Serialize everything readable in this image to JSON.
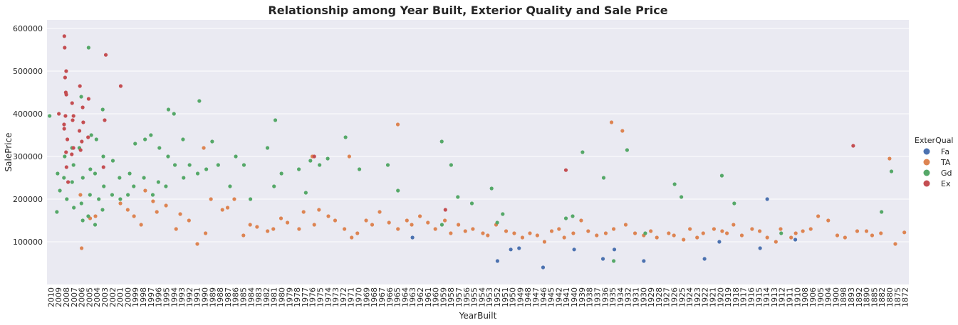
{
  "chart_data": {
    "type": "scatter",
    "title": "Relationship among Year Built, Exterior Quality and Sale Price",
    "xlabel": "YearBuilt",
    "ylabel": "SalePrice",
    "ylim": [
      0,
      620000
    ],
    "yticks": [
      100000,
      200000,
      300000,
      400000,
      500000,
      600000
    ],
    "grid": true,
    "categories": [
      "2010",
      "2009",
      "2008",
      "2007",
      "2006",
      "2005",
      "2004",
      "2003",
      "2002",
      "2001",
      "2000",
      "1999",
      "1998",
      "1997",
      "1996",
      "1995",
      "1994",
      "1993",
      "1992",
      "1991",
      "1990",
      "1989",
      "1988",
      "1987",
      "1986",
      "1985",
      "1984",
      "1983",
      "1982",
      "1981",
      "1980",
      "1979",
      "1978",
      "1977",
      "1976",
      "1975",
      "1974",
      "1973",
      "1972",
      "1971",
      "1970",
      "1969",
      "1968",
      "1967",
      "1966",
      "1965",
      "1964",
      "1963",
      "1962",
      "1961",
      "1960",
      "1959",
      "1958",
      "1957",
      "1956",
      "1955",
      "1954",
      "1953",
      "1952",
      "1951",
      "1950",
      "1949",
      "1948",
      "1947",
      "1946",
      "1945",
      "1942",
      "1941",
      "1940",
      "1939",
      "1938",
      "1937",
      "1936",
      "1935",
      "1934",
      "1932",
      "1931",
      "1930",
      "1929",
      "1928",
      "1927",
      "1926",
      "1925",
      "1924",
      "1923",
      "1922",
      "1921",
      "1920",
      "1919",
      "1918",
      "1917",
      "1916",
      "1915",
      "1914",
      "1913",
      "1912",
      "1911",
      "1910",
      "1908",
      "1906",
      "1905",
      "1904",
      "1900",
      "1898",
      "1893",
      "1892",
      "1890",
      "1885",
      "1882",
      "1880",
      "1875",
      "1872"
    ],
    "legend": {
      "title": "ExterQual",
      "position": "right",
      "entries": [
        {
          "label": "Fa",
          "color": "#4c72b0"
        },
        {
          "label": "TA",
          "color": "#dd8452"
        },
        {
          "label": "Gd",
          "color": "#55a868"
        },
        {
          "label": "Ex",
          "color": "#c44e52"
        }
      ]
    },
    "series": [
      {
        "name": "Fa",
        "color": "#4c72b0",
        "points": [
          [
            "1963",
            110000
          ],
          [
            "1952",
            55000
          ],
          [
            "1950",
            82000
          ],
          [
            "1949",
            85000
          ],
          [
            "1946",
            40000
          ],
          [
            "1940",
            82000
          ],
          [
            "1936",
            60000
          ],
          [
            "1935",
            82000
          ],
          [
            "1930",
            55000
          ],
          [
            "1922",
            60000
          ],
          [
            "1920",
            100000
          ],
          [
            "1915",
            85000
          ],
          [
            "1914",
            200000
          ],
          [
            "1910",
            105000
          ]
        ]
      },
      {
        "name": "TA",
        "color": "#dd8452",
        "points": [
          [
            "2006",
            85000
          ],
          [
            "2006",
            210000
          ],
          [
            "2005",
            155000
          ],
          [
            "2004",
            160000
          ],
          [
            "2001",
            190000
          ],
          [
            "2000",
            175000
          ],
          [
            "1999",
            160000
          ],
          [
            "1998",
            140000
          ],
          [
            "1998",
            220000
          ],
          [
            "1997",
            195000
          ],
          [
            "1996",
            170000
          ],
          [
            "1995",
            185000
          ],
          [
            "1994",
            130000
          ],
          [
            "1993",
            165000
          ],
          [
            "1992",
            150000
          ],
          [
            "1991",
            95000
          ],
          [
            "1990",
            120000
          ],
          [
            "1990",
            320000
          ],
          [
            "1989",
            200000
          ],
          [
            "1988",
            175000
          ],
          [
            "1987",
            180000
          ],
          [
            "1986",
            200000
          ],
          [
            "1985",
            115000
          ],
          [
            "1984",
            140000
          ],
          [
            "1983",
            135000
          ],
          [
            "1982",
            125000
          ],
          [
            "1981",
            130000
          ],
          [
            "1980",
            155000
          ],
          [
            "1979",
            145000
          ],
          [
            "1978",
            130000
          ],
          [
            "1977",
            170000
          ],
          [
            "1976",
            140000
          ],
          [
            "1976",
            300000
          ],
          [
            "1975",
            175000
          ],
          [
            "1974",
            160000
          ],
          [
            "1973",
            150000
          ],
          [
            "1972",
            130000
          ],
          [
            "1971",
            110000
          ],
          [
            "1971",
            300000
          ],
          [
            "1970",
            120000
          ],
          [
            "1969",
            150000
          ],
          [
            "1968",
            140000
          ],
          [
            "1967",
            170000
          ],
          [
            "1966",
            145000
          ],
          [
            "1965",
            130000
          ],
          [
            "1965",
            375000
          ],
          [
            "1964",
            150000
          ],
          [
            "1963",
            140000
          ],
          [
            "1962",
            160000
          ],
          [
            "1961",
            145000
          ],
          [
            "1960",
            130000
          ],
          [
            "1959",
            150000
          ],
          [
            "1958",
            120000
          ],
          [
            "1957",
            140000
          ],
          [
            "1956",
            125000
          ],
          [
            "1955",
            130000
          ],
          [
            "1954",
            120000
          ],
          [
            "1953",
            115000
          ],
          [
            "1952",
            140000
          ],
          [
            "1951",
            125000
          ],
          [
            "1950",
            120000
          ],
          [
            "1949",
            110000
          ],
          [
            "1948",
            120000
          ],
          [
            "1947",
            115000
          ],
          [
            "1946",
            100000
          ],
          [
            "1945",
            125000
          ],
          [
            "1942",
            130000
          ],
          [
            "1941",
            110000
          ],
          [
            "1940",
            120000
          ],
          [
            "1939",
            150000
          ],
          [
            "1938",
            125000
          ],
          [
            "1937",
            115000
          ],
          [
            "1936",
            120000
          ],
          [
            "1935",
            130000
          ],
          [
            "1935",
            380000
          ],
          [
            "1934",
            360000
          ],
          [
            "1932",
            140000
          ],
          [
            "1931",
            120000
          ],
          [
            "1930",
            115000
          ],
          [
            "1929",
            125000
          ],
          [
            "1928",
            110000
          ],
          [
            "1927",
            120000
          ],
          [
            "1926",
            115000
          ],
          [
            "1925",
            105000
          ],
          [
            "1924",
            130000
          ],
          [
            "1923",
            110000
          ],
          [
            "1922",
            120000
          ],
          [
            "1921",
            130000
          ],
          [
            "1920",
            125000
          ],
          [
            "1919",
            120000
          ],
          [
            "1918",
            140000
          ],
          [
            "1917",
            115000
          ],
          [
            "1916",
            130000
          ],
          [
            "1915",
            125000
          ],
          [
            "1914",
            110000
          ],
          [
            "1913",
            100000
          ],
          [
            "1912",
            130000
          ],
          [
            "1911",
            110000
          ],
          [
            "1910",
            120000
          ],
          [
            "1908",
            125000
          ],
          [
            "1906",
            130000
          ],
          [
            "1905",
            160000
          ],
          [
            "1904",
            150000
          ],
          [
            "1900",
            115000
          ],
          [
            "1898",
            110000
          ],
          [
            "1892",
            125000
          ],
          [
            "1890",
            125000
          ],
          [
            "1885",
            115000
          ],
          [
            "1882",
            120000
          ],
          [
            "1880",
            295000
          ],
          [
            "1875",
            95000
          ],
          [
            "1872",
            122000
          ]
        ]
      },
      {
        "name": "Gd",
        "color": "#55a868",
        "points": [
          [
            "2010",
            395000
          ],
          [
            "2009",
            260000
          ],
          [
            "2009",
            220000
          ],
          [
            "2009",
            170000
          ],
          [
            "2008",
            300000
          ],
          [
            "2008",
            250000
          ],
          [
            "2008",
            200000
          ],
          [
            "2007",
            320000
          ],
          [
            "2007",
            280000
          ],
          [
            "2007",
            240000
          ],
          [
            "2007",
            180000
          ],
          [
            "2006",
            440000
          ],
          [
            "2006",
            320000
          ],
          [
            "2006",
            250000
          ],
          [
            "2006",
            190000
          ],
          [
            "2006",
            150000
          ],
          [
            "2005",
            555000
          ],
          [
            "2005",
            350000
          ],
          [
            "2005",
            270000
          ],
          [
            "2005",
            210000
          ],
          [
            "2005",
            160000
          ],
          [
            "2004",
            340000
          ],
          [
            "2004",
            260000
          ],
          [
            "2004",
            200000
          ],
          [
            "2004",
            140000
          ],
          [
            "2003",
            410000
          ],
          [
            "2003",
            300000
          ],
          [
            "2003",
            230000
          ],
          [
            "2003",
            175000
          ],
          [
            "2002",
            290000
          ],
          [
            "2002",
            210000
          ],
          [
            "2001",
            250000
          ],
          [
            "2001",
            200000
          ],
          [
            "2000",
            260000
          ],
          [
            "2000",
            210000
          ],
          [
            "1999",
            330000
          ],
          [
            "1999",
            230000
          ],
          [
            "1998",
            340000
          ],
          [
            "1998",
            250000
          ],
          [
            "1997",
            350000
          ],
          [
            "1997",
            210000
          ],
          [
            "1996",
            320000
          ],
          [
            "1996",
            240000
          ],
          [
            "1995",
            410000
          ],
          [
            "1995",
            300000
          ],
          [
            "1995",
            230000
          ],
          [
            "1994",
            400000
          ],
          [
            "1994",
            280000
          ],
          [
            "1993",
            340000
          ],
          [
            "1993",
            250000
          ],
          [
            "1992",
            280000
          ],
          [
            "1991",
            430000
          ],
          [
            "1991",
            260000
          ],
          [
            "1990",
            270000
          ],
          [
            "1989",
            335000
          ],
          [
            "1988",
            280000
          ],
          [
            "1987",
            230000
          ],
          [
            "1986",
            300000
          ],
          [
            "1985",
            280000
          ],
          [
            "1984",
            200000
          ],
          [
            "1982",
            320000
          ],
          [
            "1981",
            385000
          ],
          [
            "1981",
            230000
          ],
          [
            "1980",
            260000
          ],
          [
            "1978",
            270000
          ],
          [
            "1977",
            215000
          ],
          [
            "1976",
            290000
          ],
          [
            "1975",
            280000
          ],
          [
            "1974",
            295000
          ],
          [
            "1972",
            345000
          ],
          [
            "1970",
            270000
          ],
          [
            "1966",
            280000
          ],
          [
            "1965",
            220000
          ],
          [
            "1959",
            335000
          ],
          [
            "1959",
            140000
          ],
          [
            "1958",
            280000
          ],
          [
            "1957",
            205000
          ],
          [
            "1955",
            190000
          ],
          [
            "1953",
            225000
          ],
          [
            "1952",
            145000
          ],
          [
            "1951",
            165000
          ],
          [
            "1941",
            155000
          ],
          [
            "1940",
            160000
          ],
          [
            "1939",
            310000
          ],
          [
            "1936",
            250000
          ],
          [
            "1935",
            55000
          ],
          [
            "1932",
            315000
          ],
          [
            "1930",
            120000
          ],
          [
            "1926",
            235000
          ],
          [
            "1925",
            205000
          ],
          [
            "1920",
            255000
          ],
          [
            "1918",
            190000
          ],
          [
            "1912",
            120000
          ],
          [
            "1882",
            170000
          ],
          [
            "1880",
            265000
          ]
        ]
      },
      {
        "name": "Ex",
        "color": "#c44e52",
        "points": [
          [
            "2009",
            400000
          ],
          [
            "2008",
            582000
          ],
          [
            "2008",
            555000
          ],
          [
            "2008",
            500000
          ],
          [
            "2008",
            485000
          ],
          [
            "2008",
            450000
          ],
          [
            "2008",
            445000
          ],
          [
            "2008",
            395000
          ],
          [
            "2008",
            375000
          ],
          [
            "2008",
            365000
          ],
          [
            "2008",
            340000
          ],
          [
            "2008",
            310000
          ],
          [
            "2008",
            275000
          ],
          [
            "2008",
            240000
          ],
          [
            "2007",
            425000
          ],
          [
            "2007",
            395000
          ],
          [
            "2007",
            385000
          ],
          [
            "2007",
            320000
          ],
          [
            "2007",
            305000
          ],
          [
            "2006",
            465000
          ],
          [
            "2006",
            415000
          ],
          [
            "2006",
            380000
          ],
          [
            "2006",
            360000
          ],
          [
            "2006",
            335000
          ],
          [
            "2006",
            315000
          ],
          [
            "2005",
            435000
          ],
          [
            "2005",
            345000
          ],
          [
            "2003",
            538000
          ],
          [
            "2003",
            385000
          ],
          [
            "2003",
            275000
          ],
          [
            "2001",
            465000
          ],
          [
            "1976",
            300000
          ],
          [
            "1959",
            175000
          ],
          [
            "1941",
            268000
          ],
          [
            "1893",
            325000
          ]
        ]
      }
    ]
  }
}
